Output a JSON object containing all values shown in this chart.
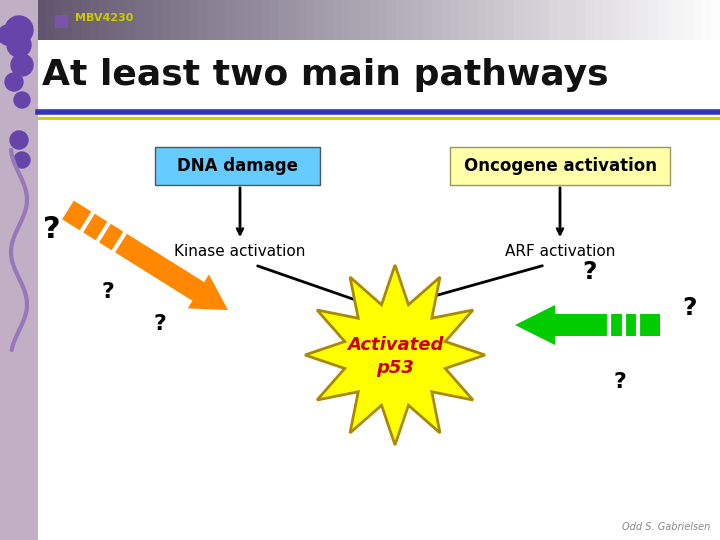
{
  "title": "At least two main pathways",
  "subtitle": "MBV4230",
  "bg_color": "#ffffff",
  "dna_box_color": "#66ccff",
  "oncogene_box_color": "#ffffaa",
  "dna_label": "DNA damage",
  "oncogene_label": "Oncogene activation",
  "kinase_label": "Kinase activation",
  "arf_label": "ARF activation",
  "center_label_line1": "Activated",
  "center_label_line2": "p53",
  "center_color": "#ffff00",
  "center_text_color": "#cc0000",
  "orange_arrow_color": "#ff8800",
  "green_arrow_color": "#00cc00",
  "question_color": "#000000",
  "left_band_color": "#c0afc5",
  "header_dark": "#5a4a6a",
  "footer": "Odd S. Gabrielsen",
  "blue_line": "#3333bb",
  "yellow_line": "#cccc00"
}
